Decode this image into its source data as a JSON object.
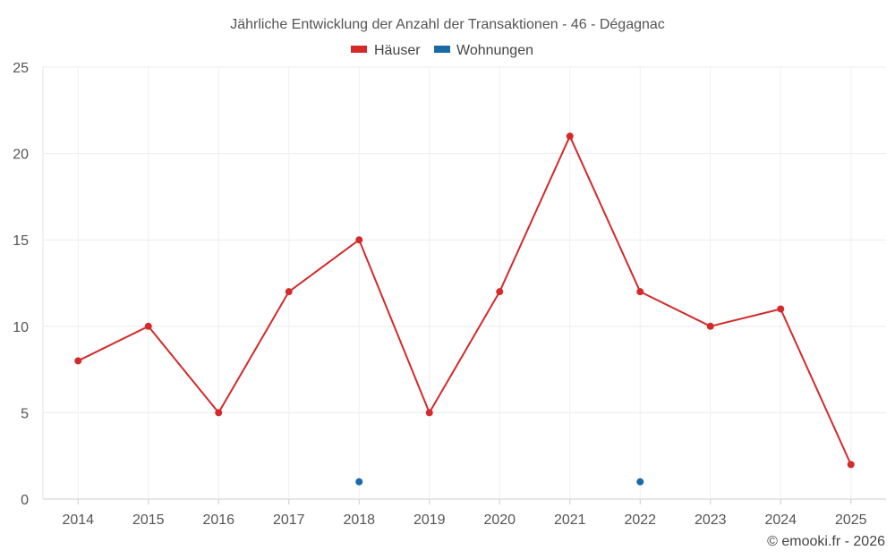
{
  "chart_data": {
    "type": "line",
    "title": "Jährliche Entwicklung der Anzahl der Transaktionen - 46 - Dégagnac",
    "categories": [
      "2014",
      "2015",
      "2016",
      "2017",
      "2018",
      "2019",
      "2020",
      "2021",
      "2022",
      "2023",
      "2024",
      "2025"
    ],
    "series": [
      {
        "name": "Häuser",
        "color": "#d42a2a",
        "values": [
          8,
          10,
          5,
          12,
          15,
          5,
          12,
          21,
          12,
          10,
          11,
          2
        ]
      },
      {
        "name": "Wohnungen",
        "color": "#1a6aa8",
        "values": [
          null,
          null,
          null,
          null,
          1,
          null,
          null,
          null,
          1,
          null,
          null,
          null
        ]
      }
    ],
    "yticks": [
      0,
      5,
      10,
      15,
      20,
      25
    ],
    "ylim": [
      0,
      25
    ],
    "xlabel": "",
    "ylabel": "",
    "grid": true,
    "legend": "top-center"
  },
  "credit": "© emooki.fr - 2026"
}
